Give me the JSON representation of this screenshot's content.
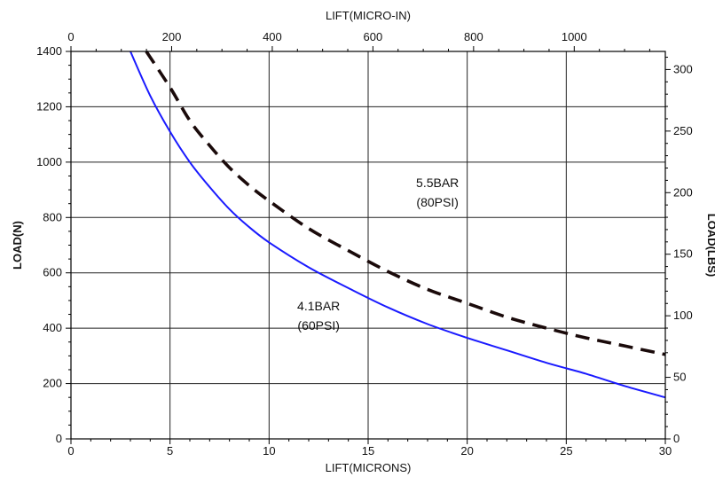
{
  "chart_data": {
    "type": "line",
    "title": "",
    "xlabel": "LIFT(MICRONS)",
    "x2label": "LIFT(MICRO-IN)",
    "ylabel": "LOAD(N)",
    "y2label": "LOAD(LBS)",
    "xlim": [
      0,
      30
    ],
    "ylim": [
      0,
      1400
    ],
    "x2lim": [
      0,
      1181
    ],
    "y2lim": [
      0,
      314.7
    ],
    "grid": true,
    "colors": {
      "series_60psi": "#1a1aff",
      "series_80psi": "#1a0a0a"
    },
    "x_ticks": [
      "0",
      "5",
      "10",
      "15",
      "20",
      "25",
      "30"
    ],
    "y_ticks": [
      "0",
      "200",
      "400",
      "600",
      "800",
      "1000",
      "1200",
      "1400"
    ],
    "x2_ticks": [
      "0",
      "200",
      "400",
      "600",
      "800",
      "1000"
    ],
    "y2_ticks": [
      "0",
      "50",
      "100",
      "150",
      "200",
      "250",
      "300"
    ],
    "series": [
      {
        "name": "4.1BAR (60PSI)",
        "style": "solid",
        "x": [
          3.0,
          4.0,
          5.0,
          6.0,
          7.0,
          8.0,
          9.0,
          10.0,
          12.0,
          14.0,
          16.0,
          18.0,
          20.0,
          22.0,
          24.0,
          26.0,
          28.0,
          30.0
        ],
        "y": [
          1400,
          1240,
          1110,
          1000,
          910,
          830,
          765,
          710,
          620,
          545,
          475,
          415,
          365,
          320,
          275,
          235,
          190,
          150
        ]
      },
      {
        "name": "5.5BAR (80PSI)",
        "style": "dashed",
        "x": [
          3.8,
          5.0,
          6.0,
          7.0,
          8.0,
          9.0,
          10.0,
          12.0,
          14.0,
          16.0,
          18.0,
          20.0,
          22.0,
          24.0,
          26.0,
          28.0,
          30.0
        ],
        "y": [
          1400,
          1270,
          1150,
          1060,
          980,
          915,
          860,
          760,
          680,
          605,
          540,
          490,
          440,
          400,
          365,
          335,
          305
        ]
      }
    ],
    "annotations": [
      {
        "line1": "5.5BAR",
        "line2": "(80PSI)",
        "x": 18.5,
        "y": 910
      },
      {
        "line1": "4.1BAR",
        "line2": "(60PSI)",
        "x": 12.5,
        "y": 465
      }
    ]
  }
}
